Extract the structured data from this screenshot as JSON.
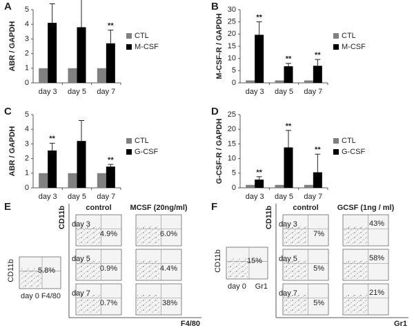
{
  "chart_data": [
    {
      "type": "bar",
      "panel": "A",
      "y_label": "ABR / GAPDH",
      "categories": [
        "day 3",
        "day 5",
        "day 7"
      ],
      "series": [
        {
          "name": "CTL",
          "color": "#808080",
          "values": [
            1,
            1,
            1
          ]
        },
        {
          "name": "M-CSF",
          "color": "#000000",
          "values": [
            4.1,
            3.8,
            2.7
          ],
          "errors": [
            1.3,
            1.9,
            0.9
          ]
        }
      ],
      "annotations": [
        "**",
        null,
        "**"
      ],
      "ylim": [
        0,
        5
      ],
      "yticks": [
        0,
        1,
        2,
        3,
        4,
        5
      ]
    },
    {
      "type": "bar",
      "panel": "B",
      "y_label": "M-CSF-R / GAPDH",
      "categories": [
        "day 3",
        "day 5",
        "day 7"
      ],
      "series": [
        {
          "name": "CTL",
          "color": "#808080",
          "values": [
            1,
            1,
            1
          ]
        },
        {
          "name": "M-CSF",
          "color": "#000000",
          "values": [
            19.7,
            6.8,
            7.0
          ],
          "errors": [
            5.3,
            1.2,
            2.6
          ]
        }
      ],
      "annotations": [
        "**",
        "**",
        "**"
      ],
      "ylim": [
        0,
        30
      ],
      "yticks": [
        0,
        5,
        10,
        15,
        20,
        25,
        30
      ]
    },
    {
      "type": "bar",
      "panel": "C",
      "y_label": "ABR / GAPDH",
      "categories": [
        "day 3",
        "day 5",
        "day 7"
      ],
      "series": [
        {
          "name": "CTL",
          "color": "#808080",
          "values": [
            1,
            1,
            1
          ]
        },
        {
          "name": "G-CSF",
          "color": "#000000",
          "values": [
            2.55,
            3.2,
            1.45
          ],
          "errors": [
            0.5,
            1.4,
            0.15
          ]
        }
      ],
      "annotations": [
        "**",
        null,
        "**"
      ],
      "ylim": [
        0,
        5
      ],
      "yticks": [
        0,
        1,
        2,
        3,
        4,
        5
      ]
    },
    {
      "type": "bar",
      "panel": "D",
      "y_label": "G-CSF-R / GAPDH",
      "categories": [
        "day 3",
        "day 5",
        "day 7"
      ],
      "series": [
        {
          "name": "CTL",
          "color": "#808080",
          "values": [
            1,
            1,
            1
          ]
        },
        {
          "name": "G-CSF",
          "color": "#000000",
          "values": [
            2.8,
            13.8,
            5.3
          ],
          "errors": [
            1.0,
            5.8,
            6.2
          ]
        }
      ],
      "annotations": [
        "**",
        "**",
        "**"
      ],
      "ylim": [
        0,
        25
      ],
      "yticks": [
        0,
        5,
        10,
        15,
        20,
        25
      ]
    }
  ],
  "flow_panels": [
    {
      "panel": "E",
      "day0": {
        "y_axis": "CD11b",
        "percent": "5.8%",
        "day": "day 0",
        "x_axis": "F4/80"
      },
      "y_axis": "CD11b",
      "x_axis": "F4/80",
      "columns": [
        "control",
        "MCSF (20ng/ml)"
      ],
      "rows": [
        "day 3",
        "day 5",
        "day 7"
      ],
      "percents": [
        [
          "4.9%",
          "6.0%"
        ],
        [
          "0.9%",
          "4.4%"
        ],
        [
          "0.7%",
          "38%"
        ]
      ]
    },
    {
      "panel": "F",
      "day0": {
        "y_axis": "CD11b",
        "percent": "15%",
        "day": "day 0",
        "x_axis": "Gr1"
      },
      "y_axis": "CD11b",
      "x_axis": "Gr1",
      "columns": [
        "control",
        "GCSF (1ng / ml)"
      ],
      "rows": [
        "day 3",
        "day 5",
        "day 7"
      ],
      "percents": [
        [
          "7%",
          "43%"
        ],
        [
          "5%",
          "58%"
        ],
        [
          "5%",
          "21%"
        ]
      ]
    }
  ]
}
